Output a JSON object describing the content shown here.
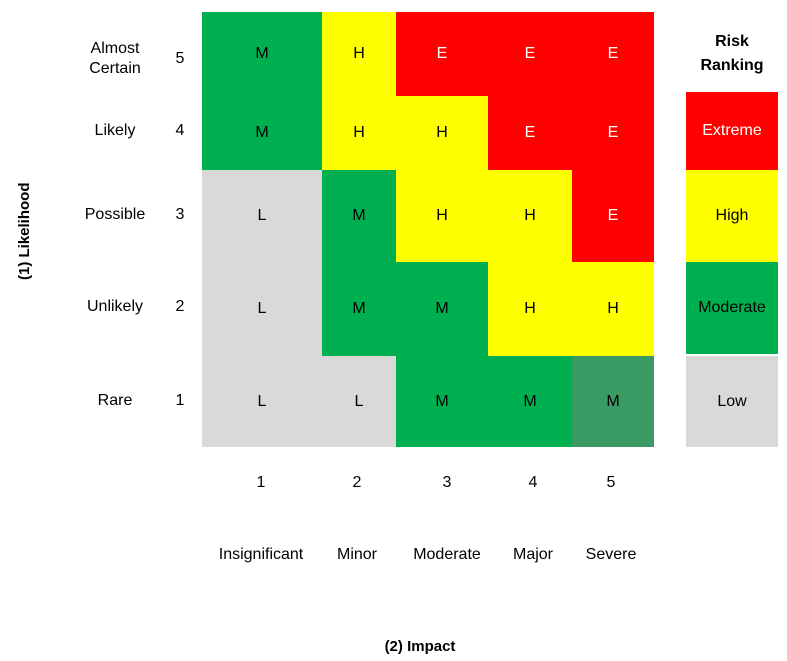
{
  "axes": {
    "likelihood_title": "(1) Likelihood",
    "impact_title": "(2) Impact"
  },
  "rows": [
    {
      "label": "Almost\nCertain",
      "num": "5",
      "cells": [
        "M",
        "H",
        "E",
        "E",
        "E"
      ]
    },
    {
      "label": "Likely",
      "num": "4",
      "cells": [
        "M",
        "H",
        "H",
        "E",
        "E"
      ]
    },
    {
      "label": "Possible",
      "num": "3",
      "cells": [
        "L",
        "M",
        "H",
        "H",
        "E"
      ]
    },
    {
      "label": "Unlikely",
      "num": "2",
      "cells": [
        "L",
        "M",
        "M",
        "H",
        "H"
      ]
    },
    {
      "label": "Rare",
      "num": "1",
      "cells": [
        "L",
        "L",
        "M",
        "M",
        "M"
      ]
    }
  ],
  "columns": [
    {
      "num": "1",
      "label": "Insignificant"
    },
    {
      "num": "2",
      "label": "Minor"
    },
    {
      "num": "3",
      "label": "Moderate"
    },
    {
      "num": "4",
      "label": "Major"
    },
    {
      "num": "5",
      "label": "Severe"
    }
  ],
  "colors": {
    "E": "#ff0000",
    "H": "#ffff00",
    "M": "#00b050",
    "L": "#d9d9d9",
    "M_dark": "#3a9a63"
  },
  "legend": {
    "title": "Risk\nRanking",
    "items": [
      {
        "key": "E",
        "label": "Extreme"
      },
      {
        "key": "H",
        "label": "High"
      },
      {
        "key": "M",
        "label": "Moderate"
      },
      {
        "key": "L",
        "label": "Low"
      }
    ]
  }
}
